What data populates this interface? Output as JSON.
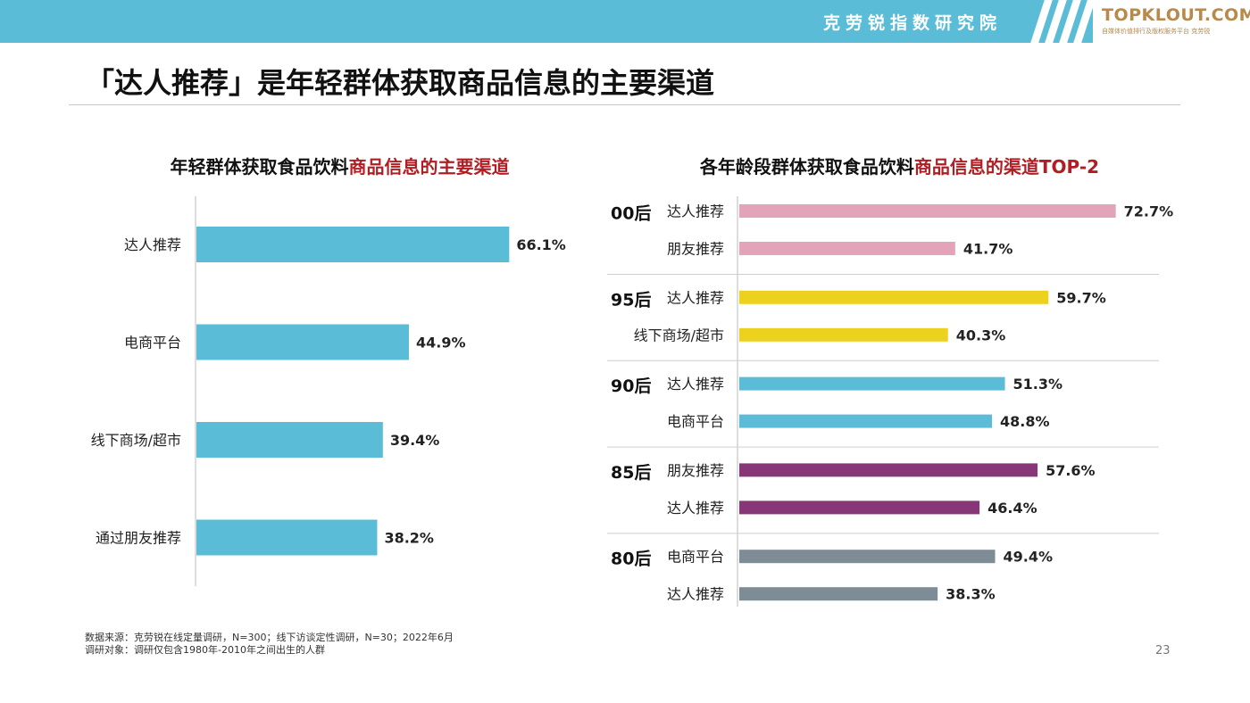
{
  "header": {
    "brand_title": "克劳锐指数研究院",
    "logo_text": "TOPKLOUT.COM",
    "logo_subtext": "自媒体价值排行及版权服务平台 克劳锐"
  },
  "page": {
    "title": "「达人推荐」是年轻群体获取商品信息的主要渠道",
    "page_number": "23"
  },
  "chart1_title": {
    "part1": "年轻群体获取食品饮料",
    "part2": "商品信息的主要渠道"
  },
  "chart2_title": {
    "part1": "各年龄段群体获取食品饮料",
    "part2": "商品信息的渠道TOP-2"
  },
  "footnote": {
    "line1": "数据来源：克劳锐在线定量调研，N=300；线下访谈定性调研，N=30；2022年6月",
    "line2": "调研对象：调研仅包含1980年-2010年之间出生的人群"
  },
  "chart_data": [
    {
      "type": "bar",
      "orientation": "horizontal",
      "title": "年轻群体获取食品饮料商品信息的主要渠道",
      "categories": [
        "达人推荐",
        "电商平台",
        "线下商场/超市",
        "通过朋友推荐"
      ],
      "values": [
        66.1,
        44.9,
        39.4,
        38.2
      ],
      "value_labels": [
        "66.1%",
        "44.9%",
        "39.4%",
        "38.2%"
      ],
      "color": "#5bbcd8",
      "unit": "%"
    },
    {
      "type": "bar",
      "orientation": "horizontal",
      "title": "各年龄段群体获取食品饮料商品信息的渠道TOP-2",
      "unit": "%",
      "groups": [
        {
          "name": "00后",
          "color": "#e3a4b9",
          "items": [
            {
              "label": "达人推荐",
              "value": 72.7,
              "value_label": "72.7%"
            },
            {
              "label": "朋友推荐",
              "value": 41.7,
              "value_label": "41.7%"
            }
          ]
        },
        {
          "name": "95后",
          "color": "#ecd11e",
          "items": [
            {
              "label": "达人推荐",
              "value": 59.7,
              "value_label": "59.7%"
            },
            {
              "label": "线下商场/超市",
              "value": 40.3,
              "value_label": "40.3%"
            }
          ]
        },
        {
          "name": "90后",
          "color": "#5bbcd8",
          "items": [
            {
              "label": "达人推荐",
              "value": 51.3,
              "value_label": "51.3%"
            },
            {
              "label": "电商平台",
              "value": 48.8,
              "value_label": "48.8%"
            }
          ]
        },
        {
          "name": "85后",
          "color": "#873777",
          "items": [
            {
              "label": "朋友推荐",
              "value": 57.6,
              "value_label": "57.6%"
            },
            {
              "label": "达人推荐",
              "value": 46.4,
              "value_label": "46.4%"
            }
          ]
        },
        {
          "name": "80后",
          "color": "#7e8c96",
          "items": [
            {
              "label": "电商平台",
              "value": 49.4,
              "value_label": "49.4%"
            },
            {
              "label": "达人推荐",
              "value": 38.3,
              "value_label": "38.3%"
            }
          ]
        }
      ]
    }
  ]
}
